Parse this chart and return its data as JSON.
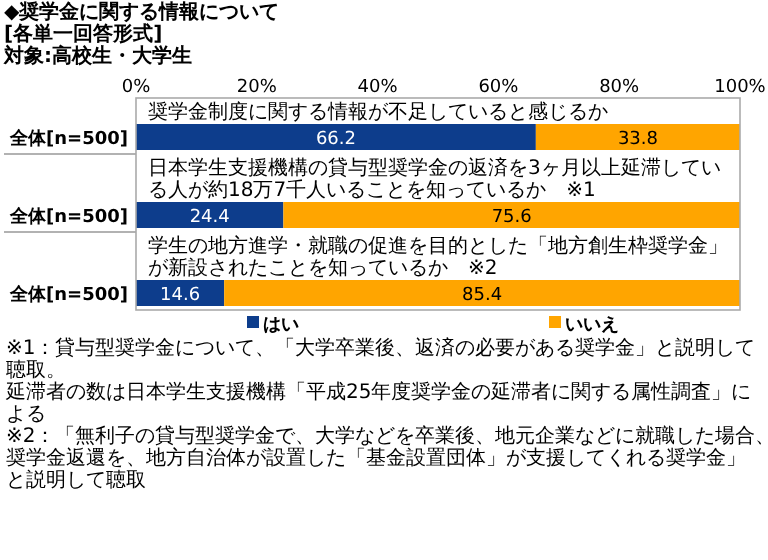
{
  "chart_data": [
    {
      "type": "bar",
      "orientation": "horizontal",
      "stacked": true,
      "title": "奨学金制度に関する情報が不足していると感じるか",
      "annotations": [
        "◆奨学金に関する情報について",
        "[各単一回答形式]",
        "対象:高校生・大学生"
      ],
      "categories": [
        "全体[n=500]"
      ],
      "series": [
        {
          "color": "#0d3d8c",
          "values": [
            66.2
          ]
        },
        {
          "color": "#ffa500",
          "values": [
            33.8
          ]
        }
      ],
      "xlim": [
        0,
        100
      ],
      "xticks": [
        {
          "value": 0,
          "label": "0%"
        },
        {
          "value": 20,
          "label": "20%"
        },
        {
          "value": 40,
          "label": "40%"
        },
        {
          "value": 60,
          "label": "60%"
        },
        {
          "value": 80,
          "label": "80%"
        },
        {
          "value": 100,
          "label": "100%"
        }
      ],
      "data_labels": true
    },
    {
      "type": "bar",
      "orientation": "horizontal",
      "stacked": true,
      "title": "日本学生支援機構の貸与型奨学金の返済を3ヶ月以上延滞している人が約18万7千人いることを知っているか　※1",
      "categories": [
        "全体[n=500]"
      ],
      "series": [
        {
          "color": "#0d3d8c",
          "values": [
            24.4
          ]
        },
        {
          "color": "#ffa500",
          "values": [
            75.6
          ]
        }
      ],
      "xlim": [
        0,
        100
      ],
      "tick_labels": "y",
      "data_labels": true
    },
    {
      "type": "bar",
      "orientation": "horizontal",
      "stacked": true,
      "title": "学生の地方進学・就職の促進を目的とした「地方創生枠奨学金」が新設されたことを知っているか　※2",
      "categories": [
        "全体[n=500]"
      ],
      "series": [
        {
          "name": "はい",
          "color": "#0d3d8c",
          "values": [
            14.6
          ]
        },
        {
          "name": "いいえ",
          "color": "#ffa500",
          "values": [
            85.4
          ]
        }
      ],
      "xlim": [
        0,
        100
      ],
      "tick_labels": "y",
      "data_labels": true,
      "legend": "bottom",
      "annotations": [
        "※1：貸与型奨学金について、「大学卒業後、返済の必要がある奨学金」と説明して聴取。",
        "延滞者の数は日本学生支援機構「平成25年度奨学金の延滞者に関する属性調査」による",
        "※2：「無利子の貸与型奨学金で、大学などを卒業後、地元企業などに就職した場合、",
        "奨学金返還を、地方自治体が設置した「基金設置団体」が支援してくれる奨学金」と説明して聴取"
      ]
    }
  ]
}
